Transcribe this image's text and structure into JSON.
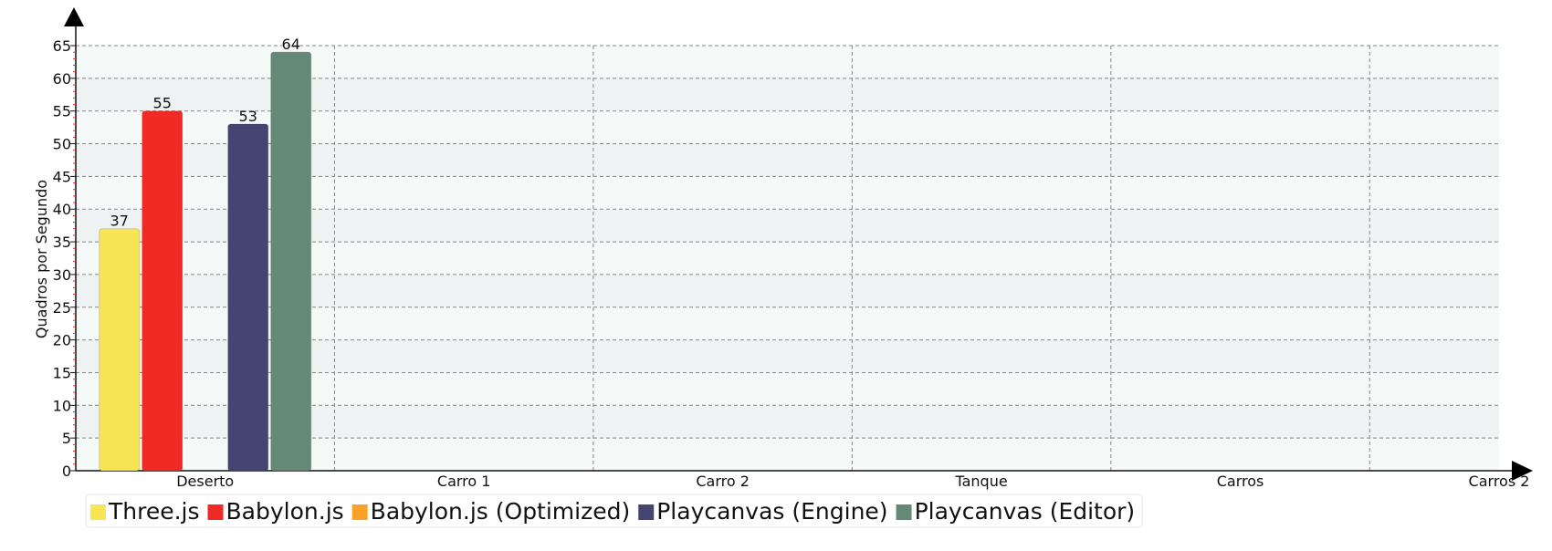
{
  "chart_data": {
    "type": "bar",
    "title": "",
    "xlabel": "",
    "ylabel": "Quadros por Segundo",
    "ylim": [
      0,
      65
    ],
    "ytick_step": 5,
    "grid": true,
    "legend_position": "bottom-left",
    "categories": [
      "Deserto",
      "Carro 1",
      "Carro 2",
      "Tanque",
      "Carros",
      "Carros 2"
    ],
    "series": [
      {
        "name": "Three.js",
        "color": "#f8e553",
        "values": [
          37,
          null,
          null,
          null,
          null,
          null
        ]
      },
      {
        "name": "Babylon.js",
        "color": "#f02b26",
        "values": [
          55,
          null,
          null,
          null,
          null,
          null
        ]
      },
      {
        "name": "Babylon.js (Optimized)",
        "color": "#fba127",
        "values": [
          null,
          null,
          null,
          null,
          null,
          null
        ]
      },
      {
        "name": "Playcanvas (Engine)",
        "color": "#444671",
        "values": [
          53,
          null,
          null,
          null,
          null,
          null
        ]
      },
      {
        "name": "Playcanvas (Editor)",
        "color": "#648a77",
        "values": [
          64,
          null,
          null,
          null,
          null,
          null
        ]
      }
    ]
  }
}
